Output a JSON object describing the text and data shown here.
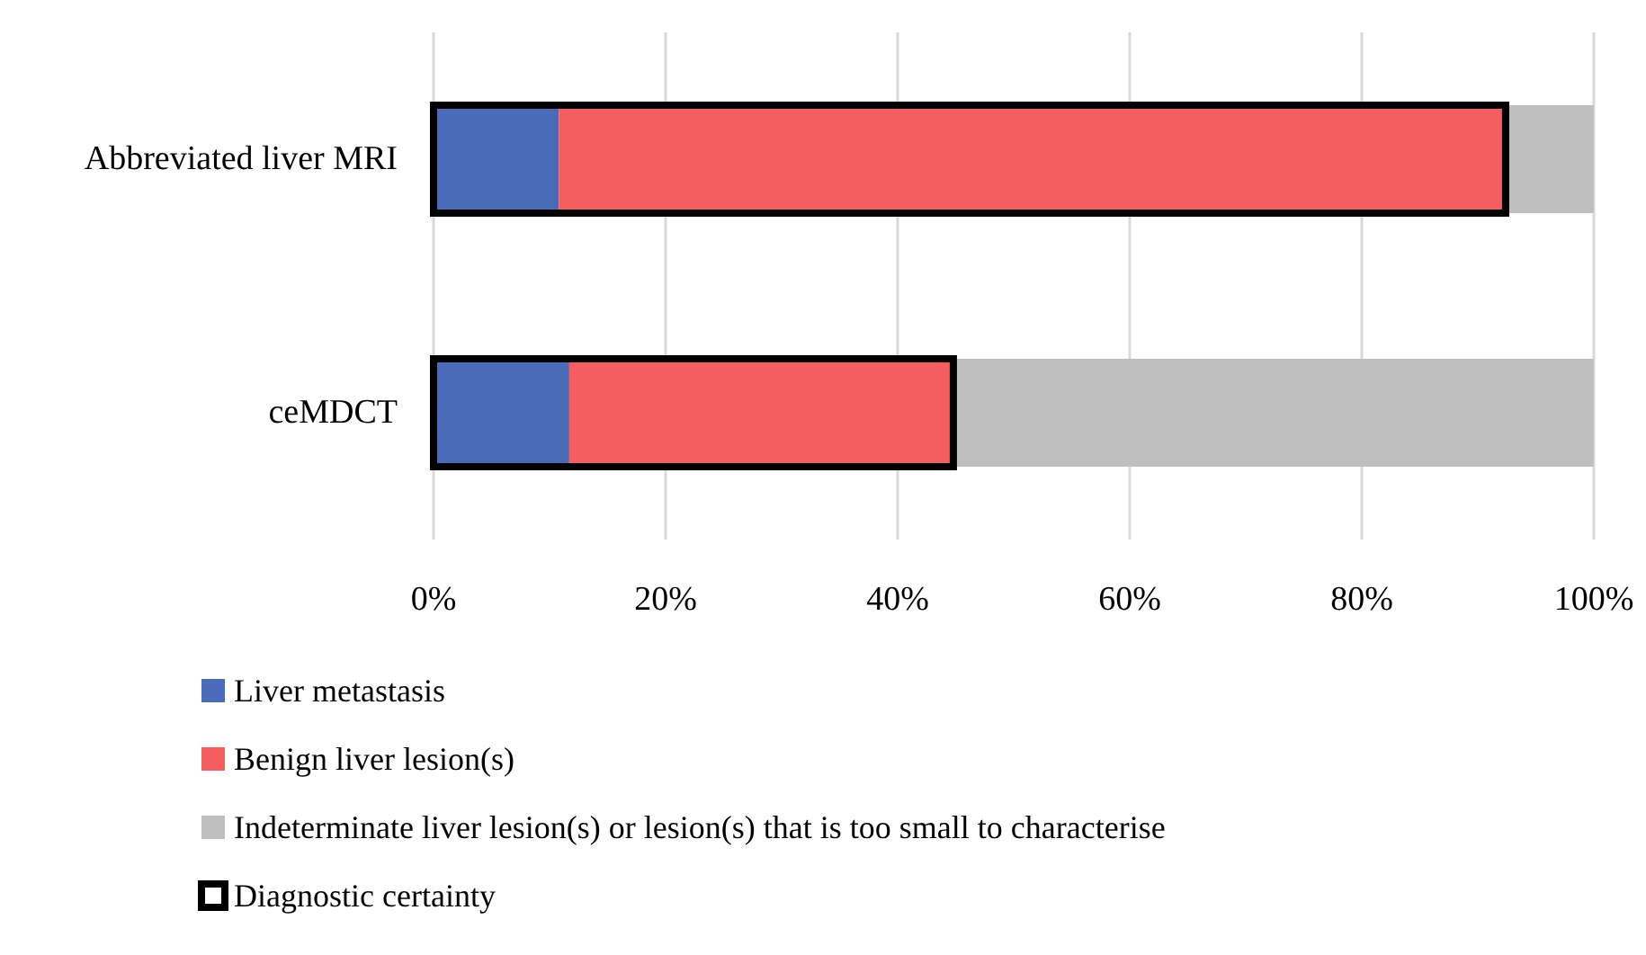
{
  "chart_data": {
    "type": "bar",
    "orientation": "horizontal",
    "categories": [
      "Abbreviated liver MRI",
      "ceMDCT"
    ],
    "series": [
      {
        "name": "Liver metastasis",
        "color": "#4a6bb8",
        "base": [
          0,
          0
        ],
        "values": [
          10.8,
          11.7
        ]
      },
      {
        "name": "Benign liver lesion(s)",
        "color": "#f55e5e",
        "base": [
          10.8,
          11.7
        ],
        "values": [
          81.6,
          33.1
        ]
      },
      {
        "name": "Indeterminate liver lesion(s) or lesion(s) that is too small to characterise",
        "color": "#bfbfbf",
        "base": [
          92.4,
          44.8
        ],
        "values": [
          7.6,
          55.2
        ]
      },
      {
        "name": "Diagnostic certainty",
        "color": "#000000",
        "base": [
          0,
          0
        ],
        "values": [
          92.4,
          44.8
        ]
      }
    ],
    "xlim": [
      0,
      100
    ],
    "xticks": [
      {
        "value": 0,
        "label": "0%"
      },
      {
        "value": 20,
        "label": "20%"
      },
      {
        "value": 40,
        "label": "40%"
      },
      {
        "value": 60,
        "label": "60%"
      },
      {
        "value": 80,
        "label": "80%"
      },
      {
        "value": 100,
        "label": "100%"
      }
    ],
    "grid": "x",
    "legend": "bottom"
  }
}
